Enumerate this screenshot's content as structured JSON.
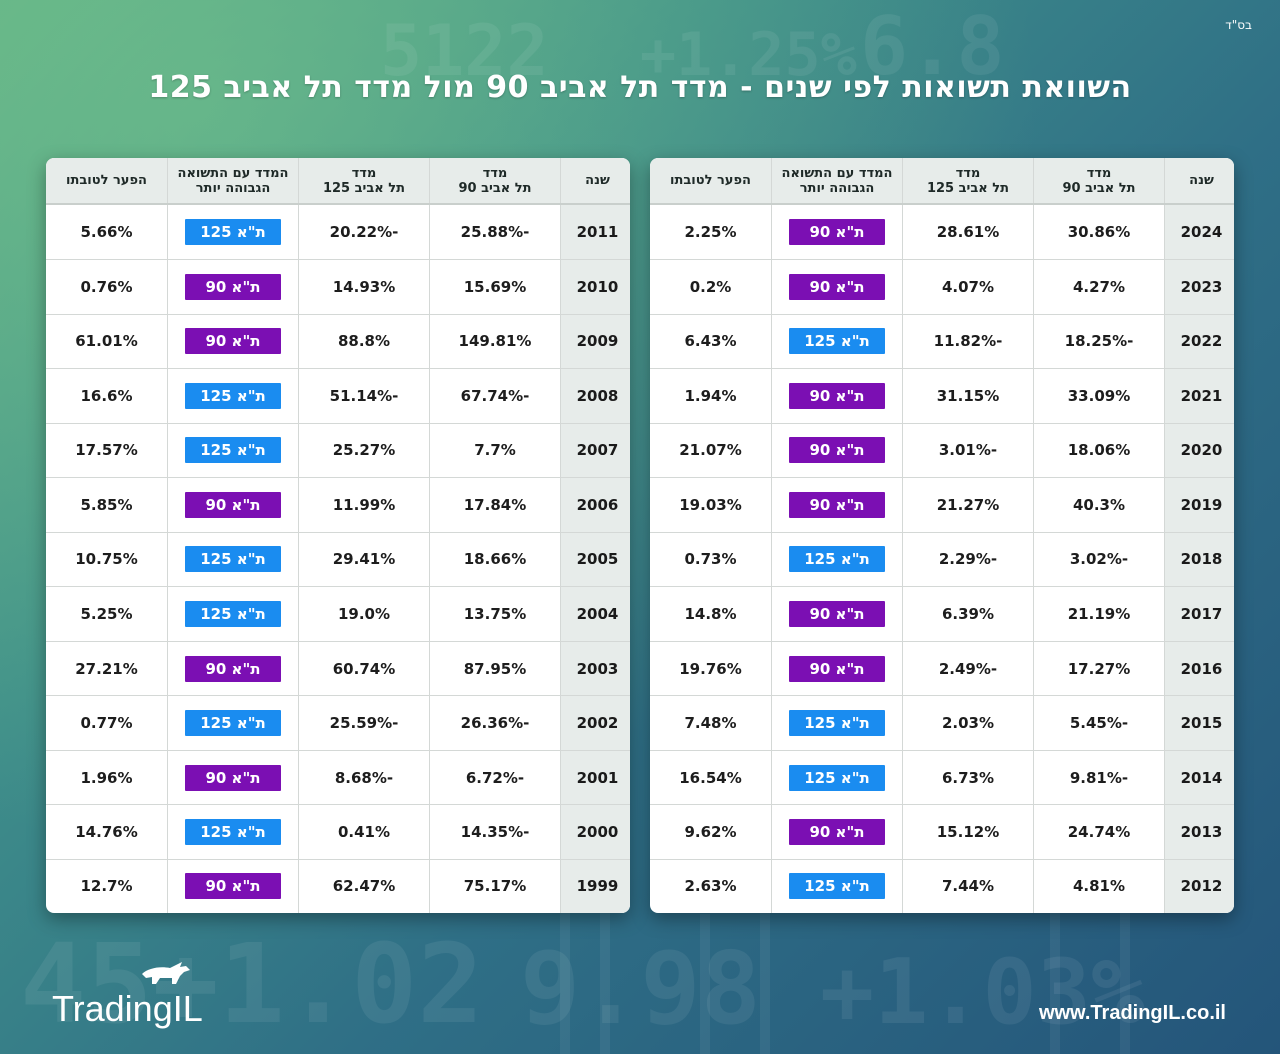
{
  "page": {
    "bsd": "בס\"ד",
    "title": "השוואת תשואות לפי שנים - מדד תל אביב 90 מול מדד תל אביב 125",
    "website": "www.TradingIL.co.il",
    "logo_text": "TradingIL"
  },
  "colors": {
    "ta90_badge": "#7b0fb3",
    "ta125_badge": "#1a8cf0",
    "positive": "#2e8b1e",
    "negative": "#d11f2a"
  },
  "badges": {
    "ta90": "ת\"א 90",
    "ta125": "ת\"א 125"
  },
  "columns": {
    "year": "שנה",
    "ta90_line1": "מדד",
    "ta90_line2": "תל אביב 90",
    "ta125_line1": "מדד",
    "ta125_line2": "תל אביב 125",
    "winner_line1": "המדד עם התשואה",
    "winner_line2": "הגבוהה יותר",
    "gap": "הפער לטובתו"
  },
  "tables": {
    "right": [
      {
        "year": "2024",
        "ta90": "30.86%",
        "ta125": "28.61%",
        "winner": "ta90",
        "gap": "2.25%"
      },
      {
        "year": "2023",
        "ta90": "4.27%",
        "ta125": "4.07%",
        "winner": "ta90",
        "gap": "0.2%"
      },
      {
        "year": "2022",
        "ta90": "-18.25%",
        "ta125": "-11.82%",
        "winner": "ta125",
        "gap": "6.43%"
      },
      {
        "year": "2021",
        "ta90": "33.09%",
        "ta125": "31.15%",
        "winner": "ta90",
        "gap": "1.94%"
      },
      {
        "year": "2020",
        "ta90": "18.06%",
        "ta125": "-3.01%",
        "winner": "ta90",
        "gap": "21.07%"
      },
      {
        "year": "2019",
        "ta90": "40.3%",
        "ta125": "21.27%",
        "winner": "ta90",
        "gap": "19.03%"
      },
      {
        "year": "2018",
        "ta90": "-3.02%",
        "ta125": "-2.29%",
        "winner": "ta125",
        "gap": "0.73%"
      },
      {
        "year": "2017",
        "ta90": "21.19%",
        "ta125": "6.39%",
        "winner": "ta90",
        "gap": "14.8%"
      },
      {
        "year": "2016",
        "ta90": "17.27%",
        "ta125": "-2.49%",
        "winner": "ta90",
        "gap": "19.76%"
      },
      {
        "year": "2015",
        "ta90": "-5.45%",
        "ta125": "2.03%",
        "winner": "ta125",
        "gap": "7.48%"
      },
      {
        "year": "2014",
        "ta90": "-9.81%",
        "ta125": "6.73%",
        "winner": "ta125",
        "gap": "16.54%"
      },
      {
        "year": "2013",
        "ta90": "24.74%",
        "ta125": "15.12%",
        "winner": "ta90",
        "gap": "9.62%"
      },
      {
        "year": "2012",
        "ta90": "4.81%",
        "ta125": "7.44%",
        "winner": "ta125",
        "gap": "2.63%"
      }
    ],
    "left": [
      {
        "year": "2011",
        "ta90": "-25.88%",
        "ta125": "-20.22%",
        "winner": "ta125",
        "gap": "5.66%"
      },
      {
        "year": "2010",
        "ta90": "15.69%",
        "ta125": "14.93%",
        "winner": "ta90",
        "gap": "0.76%"
      },
      {
        "year": "2009",
        "ta90": "149.81%",
        "ta125": "88.8%",
        "winner": "ta90",
        "gap": "61.01%"
      },
      {
        "year": "2008",
        "ta90": "-67.74%",
        "ta125": "-51.14%",
        "winner": "ta125",
        "gap": "16.6%"
      },
      {
        "year": "2007",
        "ta90": "7.7%",
        "ta125": "25.27%",
        "winner": "ta125",
        "gap": "17.57%"
      },
      {
        "year": "2006",
        "ta90": "17.84%",
        "ta125": "11.99%",
        "winner": "ta90",
        "gap": "5.85%"
      },
      {
        "year": "2005",
        "ta90": "18.66%",
        "ta125": "29.41%",
        "winner": "ta125",
        "gap": "10.75%"
      },
      {
        "year": "2004",
        "ta90": "13.75%",
        "ta125": "19.0%",
        "winner": "ta125",
        "gap": "5.25%"
      },
      {
        "year": "2003",
        "ta90": "87.95%",
        "ta125": "60.74%",
        "winner": "ta90",
        "gap": "27.21%"
      },
      {
        "year": "2002",
        "ta90": "-26.36%",
        "ta125": "-25.59%",
        "winner": "ta125",
        "gap": "0.77%"
      },
      {
        "year": "2001",
        "ta90": "-6.72%",
        "ta125": "-8.68%",
        "winner": "ta90",
        "gap": "1.96%"
      },
      {
        "year": "2000",
        "ta90": "-14.35%",
        "ta125": "0.41%",
        "winner": "ta125",
        "gap": "14.76%"
      },
      {
        "year": "1999",
        "ta90": "75.17%",
        "ta125": "62.47%",
        "winner": "ta90",
        "gap": "12.7%"
      }
    ]
  }
}
